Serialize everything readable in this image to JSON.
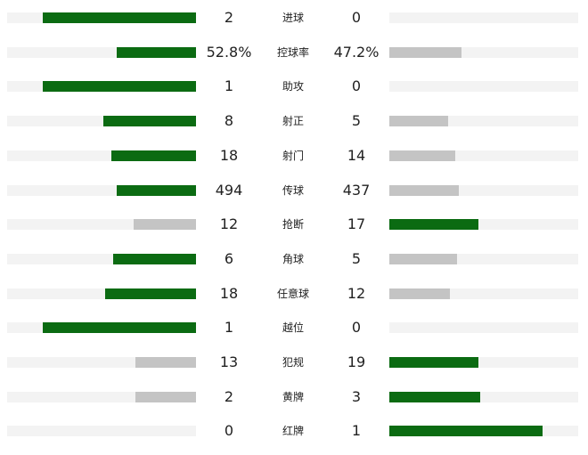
{
  "colors": {
    "leading_bar": "#0b6b12",
    "trailing_bar": "#c4c4c4",
    "track": "#f3f3f3",
    "text": "#222222"
  },
  "stats": [
    {
      "label": "进球",
      "home": "2",
      "away": "0",
      "home_fill": 0.81,
      "away_fill": 0.0,
      "home_leads": true,
      "away_leads": false
    },
    {
      "label": "控球率",
      "home": "52.8%",
      "away": "47.2%",
      "home_fill": 0.42,
      "away_fill": 0.38,
      "home_leads": true,
      "away_leads": false
    },
    {
      "label": "助攻",
      "home": "1",
      "away": "0",
      "home_fill": 0.81,
      "away_fill": 0.0,
      "home_leads": true,
      "away_leads": false
    },
    {
      "label": "射正",
      "home": "8",
      "away": "5",
      "home_fill": 0.49,
      "away_fill": 0.31,
      "home_leads": true,
      "away_leads": false
    },
    {
      "label": "射门",
      "home": "18",
      "away": "14",
      "home_fill": 0.45,
      "away_fill": 0.35,
      "home_leads": true,
      "away_leads": false
    },
    {
      "label": "传球",
      "home": "494",
      "away": "437",
      "home_fill": 0.42,
      "away_fill": 0.37,
      "home_leads": true,
      "away_leads": false
    },
    {
      "label": "抢断",
      "home": "12",
      "away": "17",
      "home_fill": 0.33,
      "away_fill": 0.47,
      "home_leads": false,
      "away_leads": true
    },
    {
      "label": "角球",
      "home": "6",
      "away": "5",
      "home_fill": 0.44,
      "away_fill": 0.36,
      "home_leads": true,
      "away_leads": false
    },
    {
      "label": "任意球",
      "home": "18",
      "away": "12",
      "home_fill": 0.48,
      "away_fill": 0.32,
      "home_leads": true,
      "away_leads": false
    },
    {
      "label": "越位",
      "home": "1",
      "away": "0",
      "home_fill": 0.81,
      "away_fill": 0.0,
      "home_leads": true,
      "away_leads": false
    },
    {
      "label": "犯规",
      "home": "13",
      "away": "19",
      "home_fill": 0.32,
      "away_fill": 0.47,
      "home_leads": false,
      "away_leads": true
    },
    {
      "label": "黄牌",
      "home": "2",
      "away": "3",
      "home_fill": 0.32,
      "away_fill": 0.48,
      "home_leads": false,
      "away_leads": true
    },
    {
      "label": "红牌",
      "home": "0",
      "away": "1",
      "home_fill": 0.0,
      "away_fill": 0.81,
      "home_leads": false,
      "away_leads": true
    }
  ]
}
